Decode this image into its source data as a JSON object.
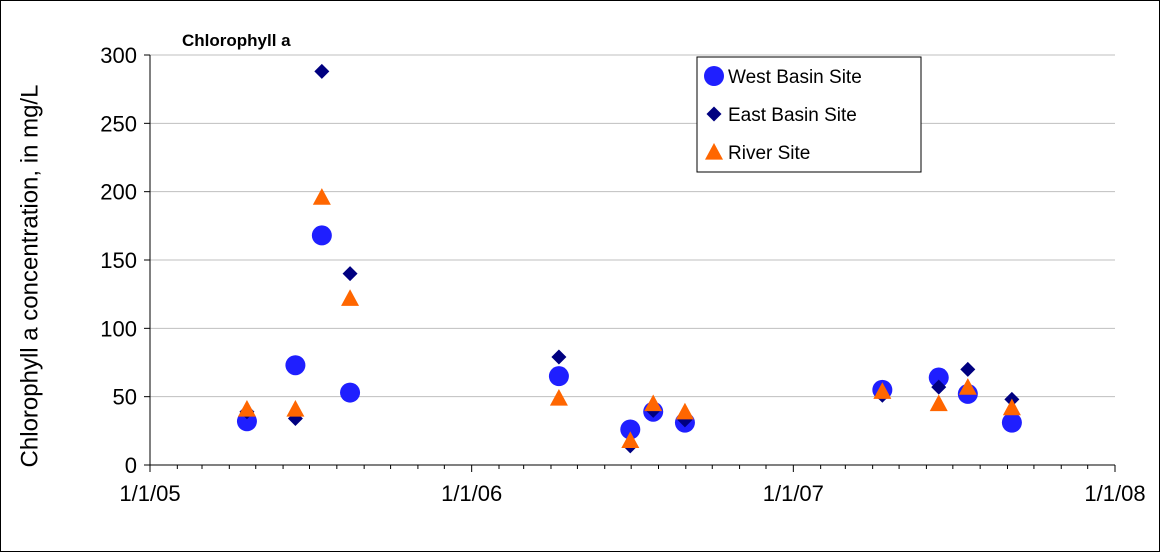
{
  "chart_data": {
    "type": "scatter",
    "title": "Chlorophyll a",
    "xlabel": "",
    "ylabel": "Chlorophyll a concentration, in mg/L",
    "xlim": [
      "1/1/05",
      "1/1/08"
    ],
    "ylim": [
      0,
      300
    ],
    "yticks": [
      0,
      50,
      100,
      150,
      200,
      250,
      300
    ],
    "xticks": [
      "1/1/05",
      "1/1/06",
      "1/1/07",
      "1/1/08"
    ],
    "grid": true,
    "legend_position": "top-right",
    "series": [
      {
        "name": "West Basin Site",
        "marker": "circle",
        "color": "#1f1fff",
        "points": [
          {
            "x": "2005-04-21",
            "y": 32
          },
          {
            "x": "2005-06-15",
            "y": 73
          },
          {
            "x": "2005-07-15",
            "y": 168
          },
          {
            "x": "2005-08-16",
            "y": 53
          },
          {
            "x": "2006-04-10",
            "y": 65
          },
          {
            "x": "2006-06-30",
            "y": 26
          },
          {
            "x": "2006-07-26",
            "y": 39
          },
          {
            "x": "2006-08-31",
            "y": 31
          },
          {
            "x": "2007-04-12",
            "y": 55
          },
          {
            "x": "2007-06-15",
            "y": 64
          },
          {
            "x": "2007-07-18",
            "y": 52
          },
          {
            "x": "2007-09-06",
            "y": 31
          }
        ]
      },
      {
        "name": "East Basin Site",
        "marker": "diamond",
        "color": "#000080",
        "points": [
          {
            "x": "2005-04-21",
            "y": 39
          },
          {
            "x": "2005-06-15",
            "y": 34
          },
          {
            "x": "2005-07-15",
            "y": 288
          },
          {
            "x": "2005-08-16",
            "y": 140
          },
          {
            "x": "2006-04-10",
            "y": 79
          },
          {
            "x": "2006-06-30",
            "y": 14
          },
          {
            "x": "2006-07-26",
            "y": 40
          },
          {
            "x": "2006-08-31",
            "y": 33
          },
          {
            "x": "2007-04-12",
            "y": 51
          },
          {
            "x": "2007-06-15",
            "y": 57
          },
          {
            "x": "2007-07-18",
            "y": 70
          },
          {
            "x": "2007-09-06",
            "y": 48
          }
        ]
      },
      {
        "name": "River Site",
        "marker": "triangle",
        "color": "#ff6600",
        "points": [
          {
            "x": "2005-04-21",
            "y": 41
          },
          {
            "x": "2005-06-15",
            "y": 41
          },
          {
            "x": "2005-07-15",
            "y": 196
          },
          {
            "x": "2005-08-16",
            "y": 122
          },
          {
            "x": "2006-04-10",
            "y": 49
          },
          {
            "x": "2006-06-30",
            "y": 18
          },
          {
            "x": "2006-07-26",
            "y": 45
          },
          {
            "x": "2006-08-31",
            "y": 39
          },
          {
            "x": "2007-04-12",
            "y": 54
          },
          {
            "x": "2007-06-15",
            "y": 45
          },
          {
            "x": "2007-07-18",
            "y": 57
          },
          {
            "x": "2007-09-06",
            "y": 42
          }
        ]
      }
    ]
  }
}
